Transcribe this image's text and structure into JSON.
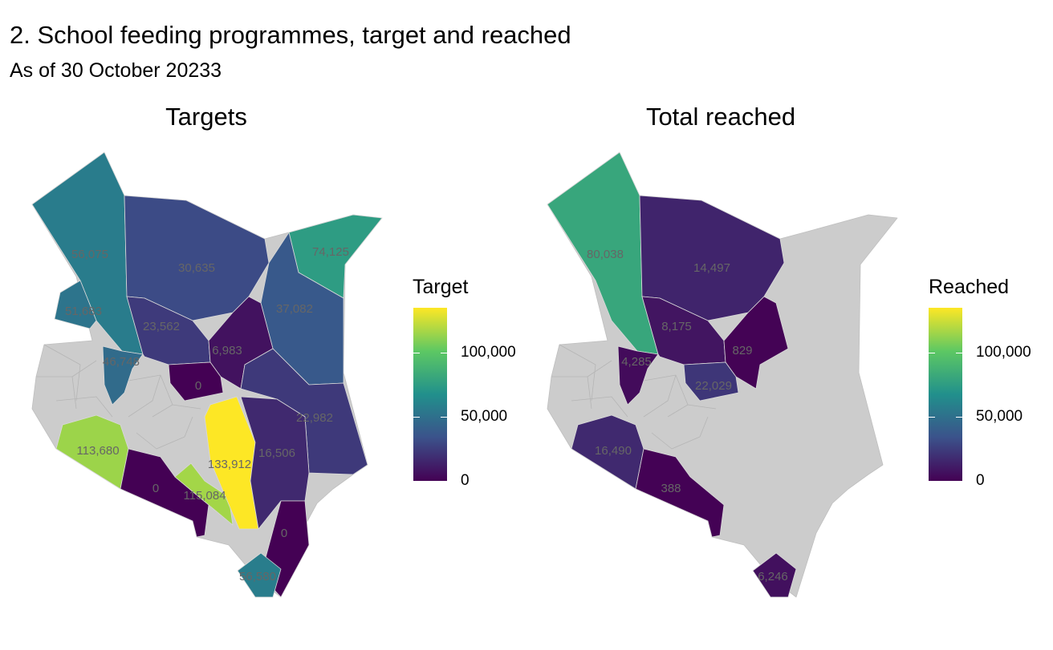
{
  "title": "2. School feeding programmes, target and reached",
  "subtitle": "As of 30 October 20233",
  "maps": {
    "left": {
      "title": "Targets",
      "legend_title": "Target",
      "legend_ticks": [
        "0",
        "50,000",
        "100,000"
      ],
      "scale_max": 133912,
      "no_data_color": "#cccccc",
      "regions": [
        {
          "id": "turkana",
          "value": 56075,
          "label": "56,075"
        },
        {
          "id": "marsabit",
          "value": 30635,
          "label": "30,635"
        },
        {
          "id": "mandera",
          "value": 74125,
          "label": "74,125"
        },
        {
          "id": "wajir",
          "value": 37082,
          "label": "37,082"
        },
        {
          "id": "west-pokot",
          "value": 51683,
          "label": "51,683"
        },
        {
          "id": "samburu",
          "value": 23562,
          "label": "23,562"
        },
        {
          "id": "isiolo",
          "value": 6983,
          "label": "6,983"
        },
        {
          "id": "baringo",
          "value": 46748,
          "label": "46,748"
        },
        {
          "id": "meru",
          "value": 0,
          "label": "0"
        },
        {
          "id": "garissa",
          "value": 22982,
          "label": "22,982"
        },
        {
          "id": "narok",
          "value": 113680,
          "label": "113,680"
        },
        {
          "id": "kajiado",
          "value": 0,
          "label": "0"
        },
        {
          "id": "makueni",
          "value": 115084,
          "label": "115,084"
        },
        {
          "id": "kitui",
          "value": 133912,
          "label": "133,912"
        },
        {
          "id": "tana-river",
          "value": 16506,
          "label": "16,506"
        },
        {
          "id": "lamu",
          "value": 0,
          "label": "0"
        },
        {
          "id": "kilifi",
          "value": 56580,
          "label": "56,580"
        }
      ]
    },
    "right": {
      "title": "Total reached",
      "legend_title": "Reached",
      "legend_ticks": [
        "0",
        "50,000",
        "100,000"
      ],
      "scale_max": 133912,
      "no_data_color": "#cccccc",
      "regions": [
        {
          "id": "turkana",
          "value": 80038,
          "label": "80,038"
        },
        {
          "id": "marsabit",
          "value": 14497,
          "label": "14,497"
        },
        {
          "id": "samburu",
          "value": 8175,
          "label": "8,175"
        },
        {
          "id": "baringo",
          "value": 4285,
          "label": "4,285"
        },
        {
          "id": "isiolo",
          "value": 829,
          "label": "829"
        },
        {
          "id": "meru",
          "value": 22029,
          "label": "22,029"
        },
        {
          "id": "narok",
          "value": 16490,
          "label": "16,490"
        },
        {
          "id": "kajiado",
          "value": 388,
          "label": "388"
        },
        {
          "id": "kilifi",
          "value": 6246,
          "label": "6,246"
        }
      ]
    }
  }
}
